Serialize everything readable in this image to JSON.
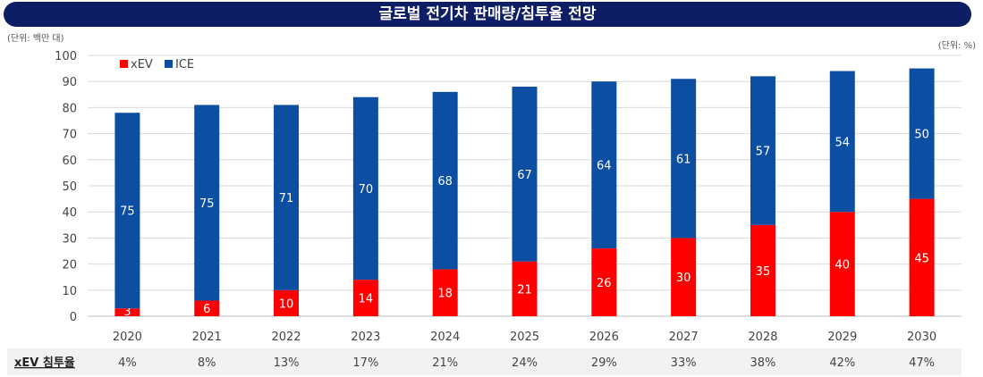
{
  "chart_data": {
    "type": "bar",
    "stacked": true,
    "title": "글로벌 전기차 판매량/침투율 전망",
    "unit_left": "(단위: 백만 대)",
    "unit_right": "(단위: %)",
    "categories": [
      "2020",
      "2021",
      "2022",
      "2023",
      "2024",
      "2025",
      "2026",
      "2027",
      "2028",
      "2029",
      "2030"
    ],
    "series": [
      {
        "name": "xEV",
        "color": "#ff0000",
        "values": [
          3,
          6,
          10,
          14,
          18,
          21,
          26,
          30,
          35,
          40,
          45
        ]
      },
      {
        "name": "ICE",
        "color": "#0b4ea2",
        "values": [
          75,
          75,
          71,
          70,
          68,
          67,
          64,
          61,
          57,
          54,
          50
        ]
      }
    ],
    "ylim": [
      0,
      100
    ],
    "yticks": [
      0,
      10,
      20,
      30,
      40,
      50,
      60,
      70,
      80,
      90,
      100
    ],
    "grid": true,
    "legend": "top-left",
    "penetration": {
      "label": "xEV 침투율",
      "values": [
        "4%",
        "8%",
        "13%",
        "17%",
        "21%",
        "24%",
        "29%",
        "33%",
        "38%",
        "42%",
        "47%"
      ]
    }
  }
}
